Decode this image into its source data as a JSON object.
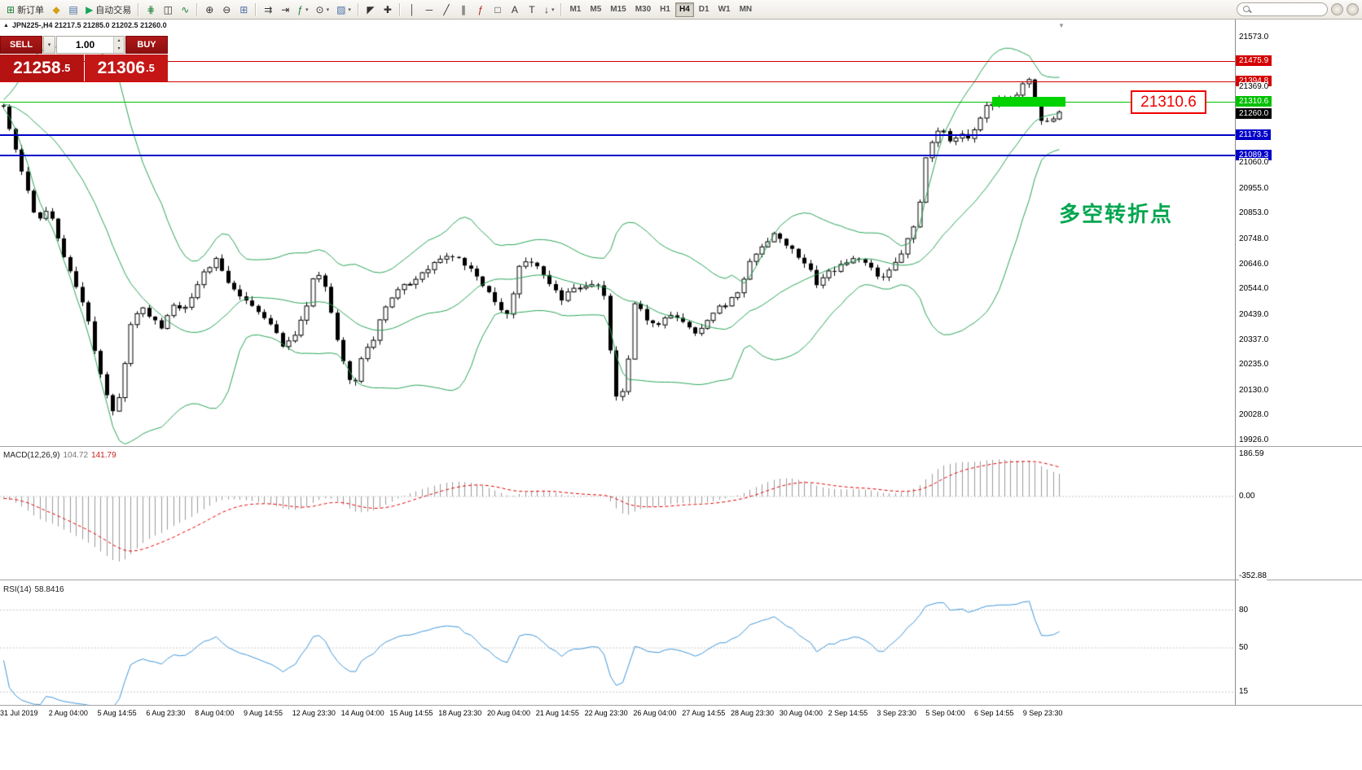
{
  "colors": {
    "badges": {
      "red": "#d40000",
      "green": "#00c000",
      "blue": "#0000c8",
      "black": "#000000"
    },
    "band_green": "#27a457",
    "macd_histogram": "#9b9b9b",
    "macd_signal": "#e00000",
    "rsi_line": "#3f95d8"
  },
  "toolbar": {
    "items": [
      {
        "name": "new-order-button",
        "glyph": "⊞",
        "glyph_color": "#1a7f37",
        "label": "新订单"
      },
      {
        "name": "profiles-button",
        "glyph": "◆",
        "glyph_color": "#d4a017"
      },
      {
        "name": "data-window-button",
        "glyph": "▤",
        "glyph_color": "#4a6fa5"
      },
      {
        "name": "autotrading-button",
        "glyph": "▶",
        "glyph_color": "#18a558",
        "label": "自动交易"
      },
      {
        "sep": true
      },
      {
        "name": "bar-chart-button",
        "glyph": "⋕",
        "glyph_color": "#1a7f37"
      },
      {
        "name": "candlestick-chart-button",
        "glyph": "◫",
        "glyph_color": "#333333"
      },
      {
        "name": "line-chart-button",
        "glyph": "∿",
        "glyph_color": "#1a7f37"
      },
      {
        "sep": true
      },
      {
        "name": "zoom-in-button",
        "glyph": "⊕",
        "glyph_color": "#333333"
      },
      {
        "name": "zoom-out-button",
        "glyph": "⊖",
        "glyph_color": "#333333"
      },
      {
        "name": "tile-windows-button",
        "glyph": "⊞",
        "glyph_color": "#4a6fa5"
      },
      {
        "sep": true
      },
      {
        "name": "auto-scroll-button",
        "glyph": "⇉",
        "glyph_color": "#333333"
      },
      {
        "name": "chart-shift-button",
        "glyph": "⇥",
        "glyph_color": "#333333"
      },
      {
        "name": "indicators-button",
        "glyph": "ƒ",
        "glyph_color": "#1a7f37",
        "dropdown": true
      },
      {
        "name": "periods-button",
        "glyph": "⊙",
        "glyph_color": "#333333",
        "dropdown": true
      },
      {
        "name": "templates-button",
        "glyph": "▨",
        "glyph_color": "#4a6fa5",
        "dropdown": true
      },
      {
        "sep": true
      },
      {
        "name": "cursor-button",
        "glyph": "◤",
        "glyph_color": "#333333"
      },
      {
        "name": "crosshair-button",
        "glyph": "✚",
        "glyph_color": "#333333"
      },
      {
        "sep": true
      },
      {
        "name": "vertical-line-button",
        "glyph": "│",
        "glyph_color": "#333333"
      },
      {
        "name": "horizontal-line-button",
        "glyph": "─",
        "glyph_color": "#333333"
      },
      {
        "name": "trendline-button",
        "glyph": "╱",
        "glyph_color": "#333333"
      },
      {
        "name": "channel-button",
        "glyph": "∥",
        "glyph_color": "#333333"
      },
      {
        "name": "fibonacci-button",
        "glyph": "ƒ",
        "glyph_color": "#b22222"
      },
      {
        "name": "shapes-button",
        "glyph": "□",
        "glyph_color": "#333333"
      },
      {
        "name": "text-button",
        "glyph": "A",
        "glyph_color": "#333333"
      },
      {
        "name": "text-label-button",
        "glyph": "T",
        "glyph_color": "#333333"
      },
      {
        "name": "arrows-button",
        "glyph": "↓",
        "glyph_color": "#333333",
        "dropdown": true
      },
      {
        "sep": true
      }
    ],
    "timeframes": [
      {
        "label": "M1"
      },
      {
        "label": "M5"
      },
      {
        "label": "M15"
      },
      {
        "label": "M30"
      },
      {
        "label": "H1"
      },
      {
        "label": "H4",
        "active": true
      },
      {
        "label": "D1"
      },
      {
        "label": "W1"
      },
      {
        "label": "MN"
      }
    ],
    "search_placeholder": ""
  },
  "symbol_bar": {
    "text": "JPN225-,H4  21217.5 21285.0 21202.5 21260.0"
  },
  "trade_panel": {
    "sell_label": "SELL",
    "buy_label": "BUY",
    "volume": "1.00",
    "sell_price_main": "21258",
    "sell_price_frac": ".5",
    "buy_price_main": "21306",
    "buy_price_frac": ".5"
  },
  "indicator_labels": {
    "macd_title": "MACD(12,26,9)",
    "macd_value1": "104.72",
    "macd_value2": "141.79",
    "rsi_title": "RSI(14)",
    "rsi_value": "58.8416"
  },
  "annotation": {
    "text": "多空转折点"
  },
  "callout": {
    "text": "21310.6"
  },
  "scales": {
    "main": [
      {
        "v": 21573.0
      },
      {
        "v": 21475.9,
        "badge": "red"
      },
      {
        "v": 21394.8,
        "badge": "red"
      },
      {
        "v": 21369.0
      },
      {
        "v": 21310.6,
        "badge": "green"
      },
      {
        "v": 21260.0,
        "badge": "black"
      },
      {
        "v": 21173.5,
        "badge": "blue"
      },
      {
        "v": 21089.3,
        "badge": "blue"
      },
      {
        "v": 21060.0
      },
      {
        "v": 20955.0
      },
      {
        "v": 20853.0
      },
      {
        "v": 20748.0
      },
      {
        "v": 20646.0
      },
      {
        "v": 20544.0
      },
      {
        "v": 20439.0
      },
      {
        "v": 20337.0
      },
      {
        "v": 20235.0
      },
      {
        "v": 20130.0
      },
      {
        "v": 20028.0
      },
      {
        "v": 19926.0
      }
    ],
    "macd": [
      186.59,
      0,
      -352.88
    ],
    "rsi": [
      80,
      50,
      15
    ]
  },
  "chart_data": {
    "type": "candlestick",
    "symbol": "JPN225-",
    "timeframe": "H4",
    "ohlc_display": {
      "open": "21217.5",
      "high": "21285.0",
      "low": "21202.5",
      "close": "21260.0"
    },
    "candles_count": 175,
    "price_path": [
      [
        0,
        21290
      ],
      [
        0.01,
        21150
      ],
      [
        0.022,
        20950
      ],
      [
        0.032,
        20830
      ],
      [
        0.042,
        20880
      ],
      [
        0.052,
        20760
      ],
      [
        0.062,
        20620
      ],
      [
        0.072,
        20520
      ],
      [
        0.082,
        20380
      ],
      [
        0.092,
        20190
      ],
      [
        0.1,
        20070
      ],
      [
        0.106,
        20020
      ],
      [
        0.112,
        20150
      ],
      [
        0.12,
        20400
      ],
      [
        0.13,
        20470
      ],
      [
        0.14,
        20420
      ],
      [
        0.15,
        20390
      ],
      [
        0.16,
        20480
      ],
      [
        0.17,
        20460
      ],
      [
        0.18,
        20530
      ],
      [
        0.19,
        20610
      ],
      [
        0.2,
        20670
      ],
      [
        0.21,
        20590
      ],
      [
        0.225,
        20510
      ],
      [
        0.24,
        20460
      ],
      [
        0.255,
        20390
      ],
      [
        0.265,
        20310
      ],
      [
        0.275,
        20360
      ],
      [
        0.285,
        20430
      ],
      [
        0.295,
        20620
      ],
      [
        0.305,
        20560
      ],
      [
        0.315,
        20360
      ],
      [
        0.325,
        20210
      ],
      [
        0.332,
        20130
      ],
      [
        0.34,
        20290
      ],
      [
        0.35,
        20340
      ],
      [
        0.36,
        20450
      ],
      [
        0.372,
        20530
      ],
      [
        0.385,
        20570
      ],
      [
        0.4,
        20620
      ],
      [
        0.415,
        20660
      ],
      [
        0.428,
        20690
      ],
      [
        0.44,
        20630
      ],
      [
        0.452,
        20570
      ],
      [
        0.465,
        20490
      ],
      [
        0.478,
        20440
      ],
      [
        0.49,
        20660
      ],
      [
        0.502,
        20650
      ],
      [
        0.515,
        20580
      ],
      [
        0.528,
        20500
      ],
      [
        0.54,
        20540
      ],
      [
        0.552,
        20560
      ],
      [
        0.565,
        20570
      ],
      [
        0.572,
        20460
      ],
      [
        0.578,
        20110
      ],
      [
        0.584,
        20070
      ],
      [
        0.59,
        20190
      ],
      [
        0.598,
        20490
      ],
      [
        0.608,
        20430
      ],
      [
        0.62,
        20390
      ],
      [
        0.632,
        20440
      ],
      [
        0.645,
        20400
      ],
      [
        0.658,
        20360
      ],
      [
        0.67,
        20440
      ],
      [
        0.682,
        20480
      ],
      [
        0.695,
        20530
      ],
      [
        0.708,
        20660
      ],
      [
        0.72,
        20730
      ],
      [
        0.732,
        20770
      ],
      [
        0.745,
        20710
      ],
      [
        0.758,
        20660
      ],
      [
        0.77,
        20570
      ],
      [
        0.782,
        20610
      ],
      [
        0.795,
        20650
      ],
      [
        0.808,
        20670
      ],
      [
        0.82,
        20630
      ],
      [
        0.832,
        20590
      ],
      [
        0.845,
        20650
      ],
      [
        0.855,
        20730
      ],
      [
        0.862,
        20790
      ],
      [
        0.868,
        20910
      ],
      [
        0.875,
        21130
      ],
      [
        0.882,
        21170
      ],
      [
        0.89,
        21200
      ],
      [
        0.898,
        21140
      ],
      [
        0.905,
        21190
      ],
      [
        0.912,
        21160
      ],
      [
        0.92,
        21210
      ],
      [
        0.928,
        21270
      ],
      [
        0.935,
        21300
      ],
      [
        0.942,
        21315
      ],
      [
        0.95,
        21325
      ],
      [
        0.958,
        21335
      ],
      [
        0.965,
        21385
      ],
      [
        0.97,
        21420
      ],
      [
        0.975,
        21355
      ],
      [
        0.98,
        21255
      ],
      [
        0.985,
        21195
      ],
      [
        0.992,
        21245
      ],
      [
        1,
        21268
      ]
    ],
    "indicators": {
      "bollinger": {
        "period": 20,
        "deviation": 2,
        "color": "#27a457"
      },
      "macd": {
        "fast": 12,
        "slow": 26,
        "signal": 9,
        "values": [
          104.72,
          141.79
        ],
        "scale": {
          "max": 186.59,
          "zero": 0.0,
          "min": -352.88
        }
      },
      "rsi": {
        "period": 14,
        "value": 58.8416,
        "levels": [
          80,
          50,
          15
        ]
      }
    },
    "hlines": [
      {
        "price": 21475.9,
        "color": "#d40000",
        "thickness": 1
      },
      {
        "price": 21394.8,
        "color": "#d40000",
        "thickness": 1
      },
      {
        "price": 21310.6,
        "color": "#00c000",
        "thickness": 1
      },
      {
        "price": 21173.5,
        "color": "#0000c8",
        "thickness": 2
      },
      {
        "price": 21089.3,
        "color": "#0000c8",
        "thickness": 2
      }
    ],
    "time_labels": [
      "31 Jul 2019",
      "2 Aug 04:00",
      "5 Aug 14:55",
      "6 Aug 23:30",
      "8 Aug 04:00",
      "9 Aug 14:55",
      "12 Aug 23:30",
      "14 Aug 04:00",
      "15 Aug 14:55",
      "18 Aug 23:30",
      "20 Aug 04:00",
      "21 Aug 14:55",
      "22 Aug 23:30",
      "26 Aug 04:00",
      "27 Aug 14:55",
      "28 Aug 23:30",
      "30 Aug 04:00",
      "2 Sep 14:55",
      "3 Sep 23:30",
      "5 Sep 04:00",
      "6 Sep 14:55",
      "9 Sep 23:30"
    ]
  }
}
